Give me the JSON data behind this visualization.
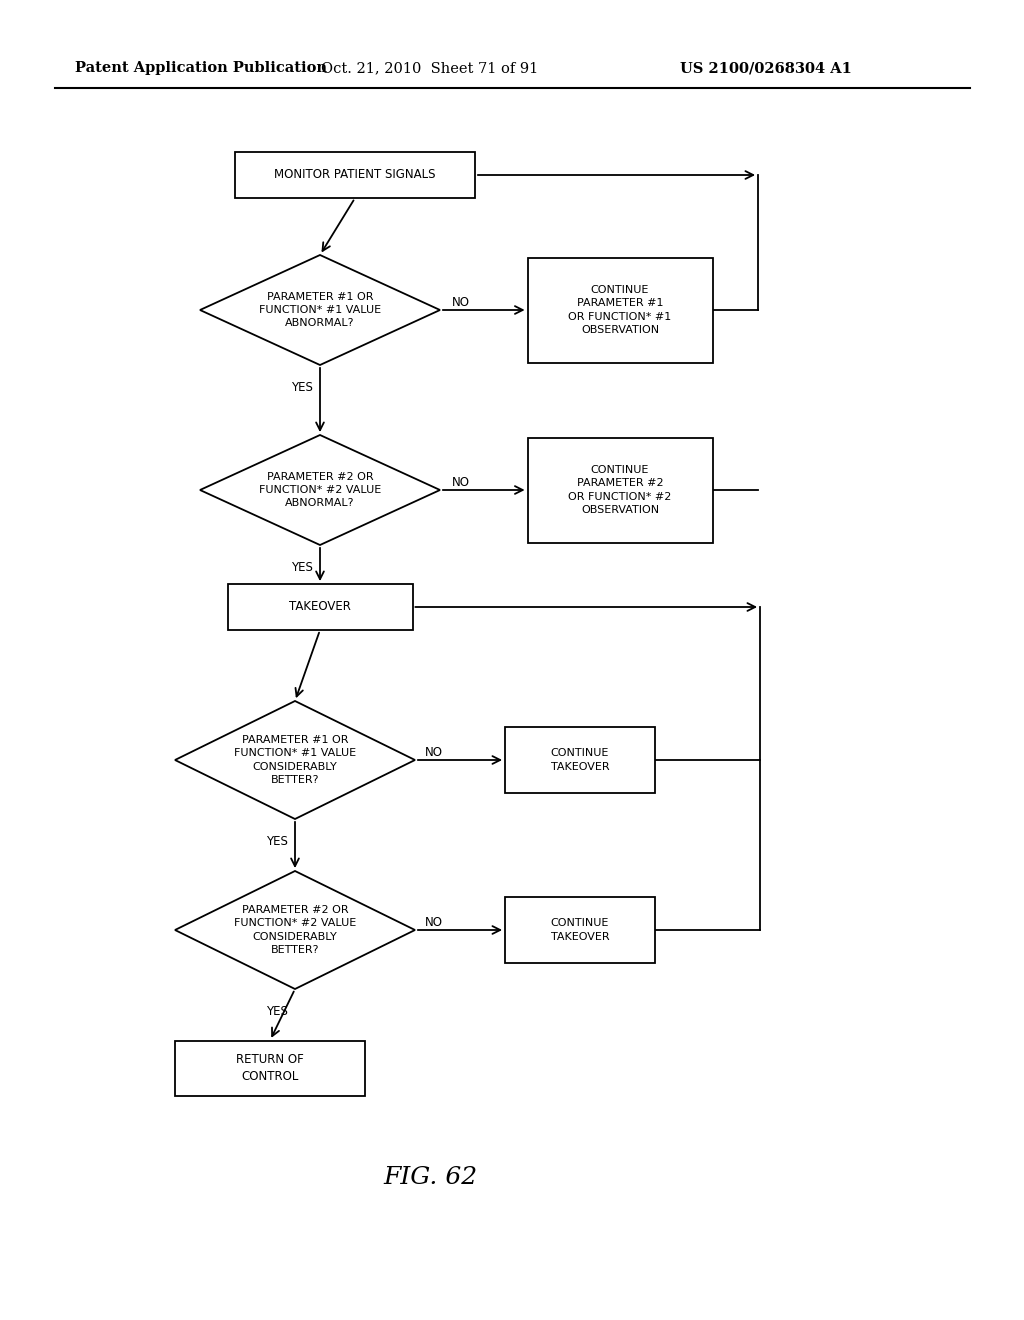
{
  "title": "FIG. 62",
  "header_left": "Patent Application Publication",
  "header_center": "Oct. 21, 2010  Sheet 71 of 91",
  "header_right": "US 2100/0268304 A1",
  "background_color": "#ffffff",
  "line_color": "#000000",
  "text_color": "#000000",
  "font_size_node": 8.0,
  "font_size_header": 10.5,
  "font_size_title": 18,
  "font_size_label": 8.5
}
